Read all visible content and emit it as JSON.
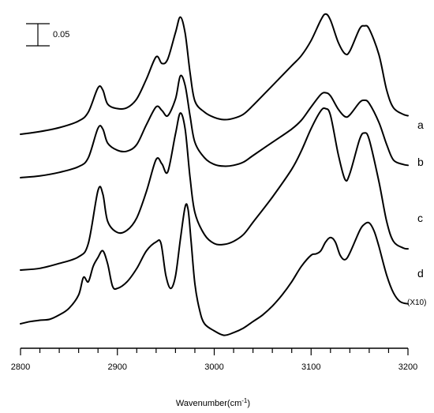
{
  "chart_data": {
    "type": "line",
    "xlabel_prefix": "Wavenumber(cm",
    "xlabel_sup": "-1",
    "xlabel_suffix": ")",
    "xlim": [
      2800,
      3200
    ],
    "x_ticks": [
      2800,
      2900,
      3000,
      3100,
      3200
    ],
    "x_minor_step": 20,
    "y_axis_shown": false,
    "grid": false,
    "scale_bar": {
      "label": "0.05",
      "value": 0.05
    },
    "annotation": "(X10)",
    "series": [
      {
        "name": "a",
        "points": [
          [
            2800,
            0.0
          ],
          [
            2820,
            0.006
          ],
          [
            2840,
            0.015
          ],
          [
            2860,
            0.03
          ],
          [
            2870,
            0.05
          ],
          [
            2880,
            0.105
          ],
          [
            2885,
            0.1
          ],
          [
            2890,
            0.068
          ],
          [
            2900,
            0.058
          ],
          [
            2910,
            0.06
          ],
          [
            2920,
            0.08
          ],
          [
            2930,
            0.125
          ],
          [
            2940,
            0.175
          ],
          [
            2946,
            0.16
          ],
          [
            2952,
            0.17
          ],
          [
            2960,
            0.23
          ],
          [
            2965,
            0.265
          ],
          [
            2970,
            0.228
          ],
          [
            2975,
            0.14
          ],
          [
            2980,
            0.075
          ],
          [
            2990,
            0.05
          ],
          [
            3000,
            0.038
          ],
          [
            3010,
            0.033
          ],
          [
            3020,
            0.036
          ],
          [
            3030,
            0.045
          ],
          [
            3040,
            0.065
          ],
          [
            3060,
            0.11
          ],
          [
            3080,
            0.155
          ],
          [
            3090,
            0.178
          ],
          [
            3100,
            0.212
          ],
          [
            3110,
            0.258
          ],
          [
            3115,
            0.272
          ],
          [
            3120,
            0.258
          ],
          [
            3128,
            0.208
          ],
          [
            3135,
            0.182
          ],
          [
            3140,
            0.188
          ],
          [
            3150,
            0.238
          ],
          [
            3155,
            0.245
          ],
          [
            3160,
            0.238
          ],
          [
            3170,
            0.18
          ],
          [
            3178,
            0.1
          ],
          [
            3185,
            0.06
          ],
          [
            3195,
            0.045
          ],
          [
            3200,
            0.042
          ]
        ]
      },
      {
        "name": "b",
        "points": [
          [
            2800,
            0.0
          ],
          [
            2820,
            0.004
          ],
          [
            2840,
            0.012
          ],
          [
            2860,
            0.025
          ],
          [
            2870,
            0.045
          ],
          [
            2880,
            0.112
          ],
          [
            2885,
            0.11
          ],
          [
            2890,
            0.078
          ],
          [
            2900,
            0.062
          ],
          [
            2910,
            0.06
          ],
          [
            2920,
            0.075
          ],
          [
            2930,
            0.12
          ],
          [
            2940,
            0.16
          ],
          [
            2946,
            0.152
          ],
          [
            2952,
            0.14
          ],
          [
            2960,
            0.178
          ],
          [
            2965,
            0.23
          ],
          [
            2970,
            0.208
          ],
          [
            2975,
            0.14
          ],
          [
            2980,
            0.08
          ],
          [
            2990,
            0.045
          ],
          [
            3000,
            0.03
          ],
          [
            3010,
            0.026
          ],
          [
            3020,
            0.028
          ],
          [
            3030,
            0.035
          ],
          [
            3040,
            0.05
          ],
          [
            3060,
            0.08
          ],
          [
            3080,
            0.11
          ],
          [
            3090,
            0.13
          ],
          [
            3100,
            0.16
          ],
          [
            3110,
            0.188
          ],
          [
            3115,
            0.192
          ],
          [
            3120,
            0.185
          ],
          [
            3128,
            0.155
          ],
          [
            3135,
            0.138
          ],
          [
            3140,
            0.142
          ],
          [
            3150,
            0.17
          ],
          [
            3155,
            0.175
          ],
          [
            3160,
            0.168
          ],
          [
            3170,
            0.125
          ],
          [
            3178,
            0.075
          ],
          [
            3185,
            0.04
          ],
          [
            3195,
            0.03
          ],
          [
            3200,
            0.028
          ]
        ]
      },
      {
        "name": "c",
        "points": [
          [
            2800,
            0.0
          ],
          [
            2820,
            0.004
          ],
          [
            2840,
            0.015
          ],
          [
            2860,
            0.03
          ],
          [
            2870,
            0.06
          ],
          [
            2880,
            0.18
          ],
          [
            2885,
            0.172
          ],
          [
            2890,
            0.11
          ],
          [
            2900,
            0.085
          ],
          [
            2910,
            0.09
          ],
          [
            2920,
            0.118
          ],
          [
            2930,
            0.178
          ],
          [
            2940,
            0.25
          ],
          [
            2946,
            0.24
          ],
          [
            2952,
            0.222
          ],
          [
            2960,
            0.308
          ],
          [
            2965,
            0.355
          ],
          [
            2970,
            0.318
          ],
          [
            2975,
            0.21
          ],
          [
            2980,
            0.13
          ],
          [
            2990,
            0.08
          ],
          [
            3000,
            0.06
          ],
          [
            3010,
            0.058
          ],
          [
            3020,
            0.065
          ],
          [
            3030,
            0.08
          ],
          [
            3040,
            0.108
          ],
          [
            3060,
            0.165
          ],
          [
            3080,
            0.228
          ],
          [
            3090,
            0.27
          ],
          [
            3100,
            0.32
          ],
          [
            3110,
            0.36
          ],
          [
            3115,
            0.365
          ],
          [
            3120,
            0.35
          ],
          [
            3128,
            0.262
          ],
          [
            3135,
            0.205
          ],
          [
            3140,
            0.218
          ],
          [
            3150,
            0.295
          ],
          [
            3155,
            0.31
          ],
          [
            3160,
            0.295
          ],
          [
            3170,
            0.2
          ],
          [
            3178,
            0.11
          ],
          [
            3185,
            0.065
          ],
          [
            3195,
            0.05
          ],
          [
            3200,
            0.048
          ]
        ]
      },
      {
        "name": "d",
        "points": [
          [
            2800,
            0.0
          ],
          [
            2810,
            0.005
          ],
          [
            2820,
            0.008
          ],
          [
            2830,
            0.01
          ],
          [
            2840,
            0.02
          ],
          [
            2850,
            0.035
          ],
          [
            2860,
            0.065
          ],
          [
            2865,
            0.105
          ],
          [
            2870,
            0.095
          ],
          [
            2875,
            0.13
          ],
          [
            2880,
            0.15
          ],
          [
            2885,
            0.165
          ],
          [
            2890,
            0.135
          ],
          [
            2895,
            0.085
          ],
          [
            2900,
            0.08
          ],
          [
            2910,
            0.095
          ],
          [
            2920,
            0.125
          ],
          [
            2930,
            0.165
          ],
          [
            2940,
            0.185
          ],
          [
            2945,
            0.182
          ],
          [
            2950,
            0.11
          ],
          [
            2955,
            0.08
          ],
          [
            2960,
            0.108
          ],
          [
            2965,
            0.19
          ],
          [
            2970,
            0.265
          ],
          [
            2973,
            0.258
          ],
          [
            2976,
            0.19
          ],
          [
            2980,
            0.09
          ],
          [
            2985,
            0.03
          ],
          [
            2990,
            0.0
          ],
          [
            3000,
            -0.016
          ],
          [
            3010,
            -0.026
          ],
          [
            3020,
            -0.02
          ],
          [
            3030,
            -0.01
          ],
          [
            3040,
            0.005
          ],
          [
            3050,
            0.02
          ],
          [
            3060,
            0.04
          ],
          [
            3070,
            0.065
          ],
          [
            3080,
            0.095
          ],
          [
            3090,
            0.13
          ],
          [
            3100,
            0.155
          ],
          [
            3105,
            0.158
          ],
          [
            3110,
            0.165
          ],
          [
            3115,
            0.185
          ],
          [
            3120,
            0.195
          ],
          [
            3125,
            0.185
          ],
          [
            3130,
            0.155
          ],
          [
            3135,
            0.145
          ],
          [
            3140,
            0.16
          ],
          [
            3150,
            0.21
          ],
          [
            3155,
            0.225
          ],
          [
            3160,
            0.228
          ],
          [
            3165,
            0.21
          ],
          [
            3170,
            0.175
          ],
          [
            3178,
            0.11
          ],
          [
            3185,
            0.07
          ],
          [
            3192,
            0.05
          ],
          [
            3200,
            0.045
          ]
        ]
      }
    ]
  }
}
